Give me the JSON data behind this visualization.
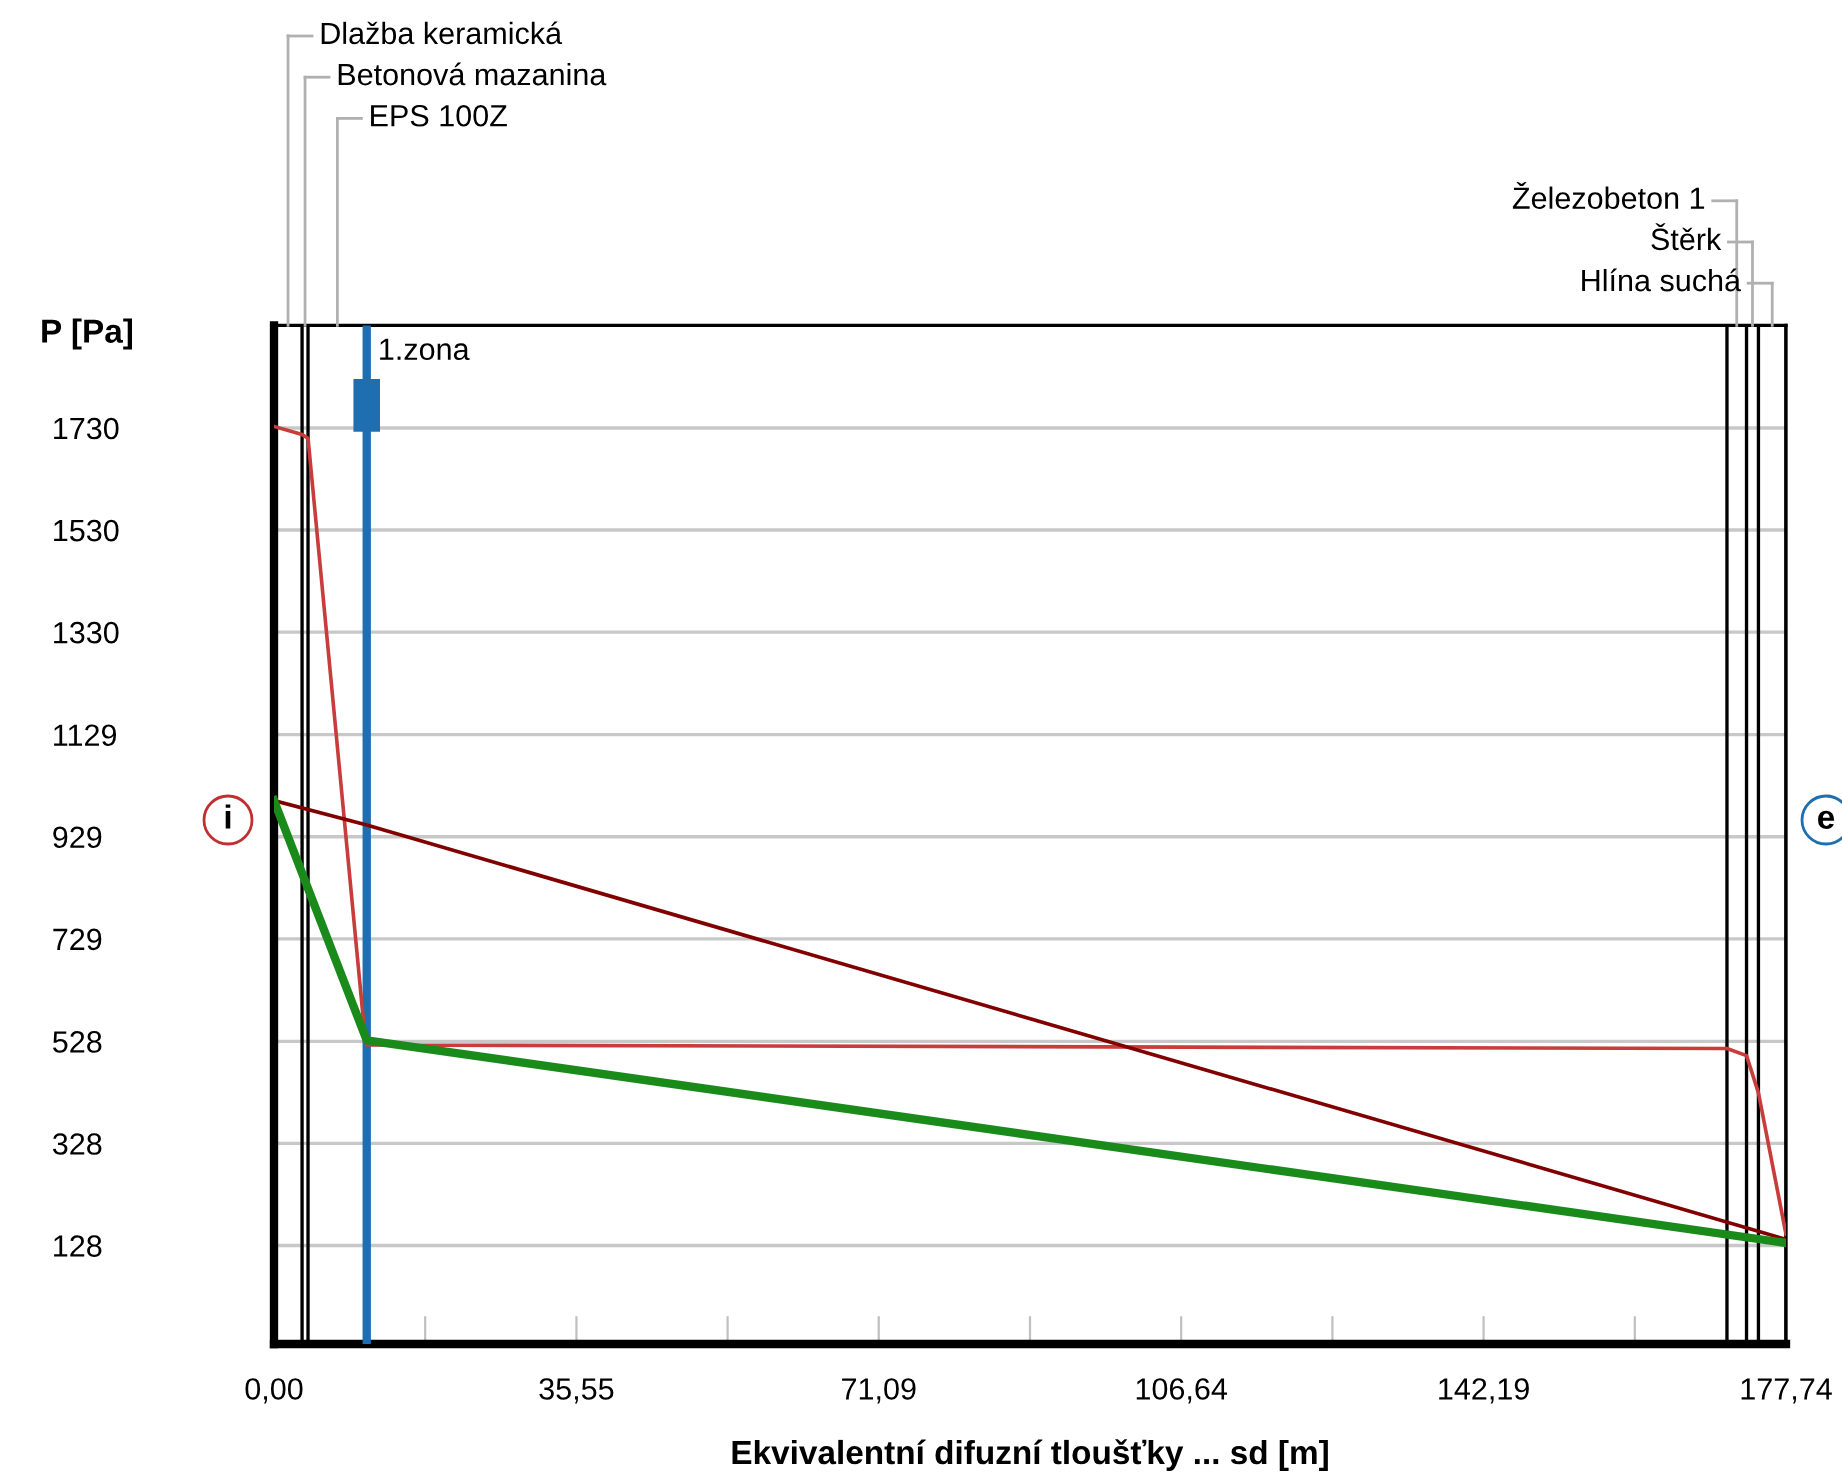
{
  "chart_data": {
    "type": "line",
    "xlabel": "Ekvivalentní difuzní tloušťky ... sd [m]",
    "ylabel": "P [Pa]",
    "xlim": [
      0,
      177.74
    ],
    "ylim": [
      -65,
      1931
    ],
    "xticks": [
      {
        "value": 0,
        "label": "0,00"
      },
      {
        "value": 17.774,
        "label": null
      },
      {
        "value": 35.55,
        "label": "35,55"
      },
      {
        "value": 53.322,
        "label": null
      },
      {
        "value": 71.09,
        "label": "71,09"
      },
      {
        "value": 88.87,
        "label": null
      },
      {
        "value": 106.64,
        "label": "106,64"
      },
      {
        "value": 124.418,
        "label": null
      },
      {
        "value": 142.19,
        "label": "142,19"
      },
      {
        "value": 159.966,
        "label": null
      },
      {
        "value": 177.74,
        "label": "177,74"
      }
    ],
    "yticks": [
      128,
      328,
      528,
      729,
      929,
      1129,
      1330,
      1530,
      1730
    ],
    "grid": "y",
    "marker": "none",
    "line_style": "solid",
    "series": [
      {
        "color": "#c83c3c",
        "x": [
          0,
          3.3,
          4.0,
          10.5,
          10.9,
          170.8,
          173.1,
          174.5,
          177.74
        ],
        "values": [
          1733,
          1717,
          1710,
          571,
          521,
          514,
          500,
          427,
          150
        ]
      },
      {
        "color": "#800000",
        "x": [
          0,
          10.9,
          177.74
        ],
        "values": [
          1000,
          952,
          140
        ]
      },
      {
        "color": "#1a8a1a",
        "x": [
          0,
          10.9,
          177.74
        ],
        "values": [
          1000,
          530,
          133
        ]
      }
    ],
    "ref_lines": [
      {
        "axis": "x",
        "value": 10.9,
        "label": "1.zona",
        "color": "#1f6fb0"
      },
      {
        "axis": "x",
        "value": 3.3,
        "color": "#000000"
      },
      {
        "axis": "x",
        "value": 4.0,
        "color": "#000000"
      },
      {
        "axis": "x",
        "value": 170.8,
        "color": "#000000"
      },
      {
        "axis": "x",
        "value": 173.1,
        "color": "#000000"
      },
      {
        "axis": "x",
        "value": 174.5,
        "color": "#000000"
      },
      {
        "axis": "x",
        "value": 177.74,
        "color": "#000000"
      }
    ],
    "annotations": [
      "i",
      "e",
      "Dlažba keramická",
      "Betonová mazanina",
      "EPS 100Z",
      "Železobeton 1",
      "Štěrk",
      "Hlína suchá"
    ]
  }
}
